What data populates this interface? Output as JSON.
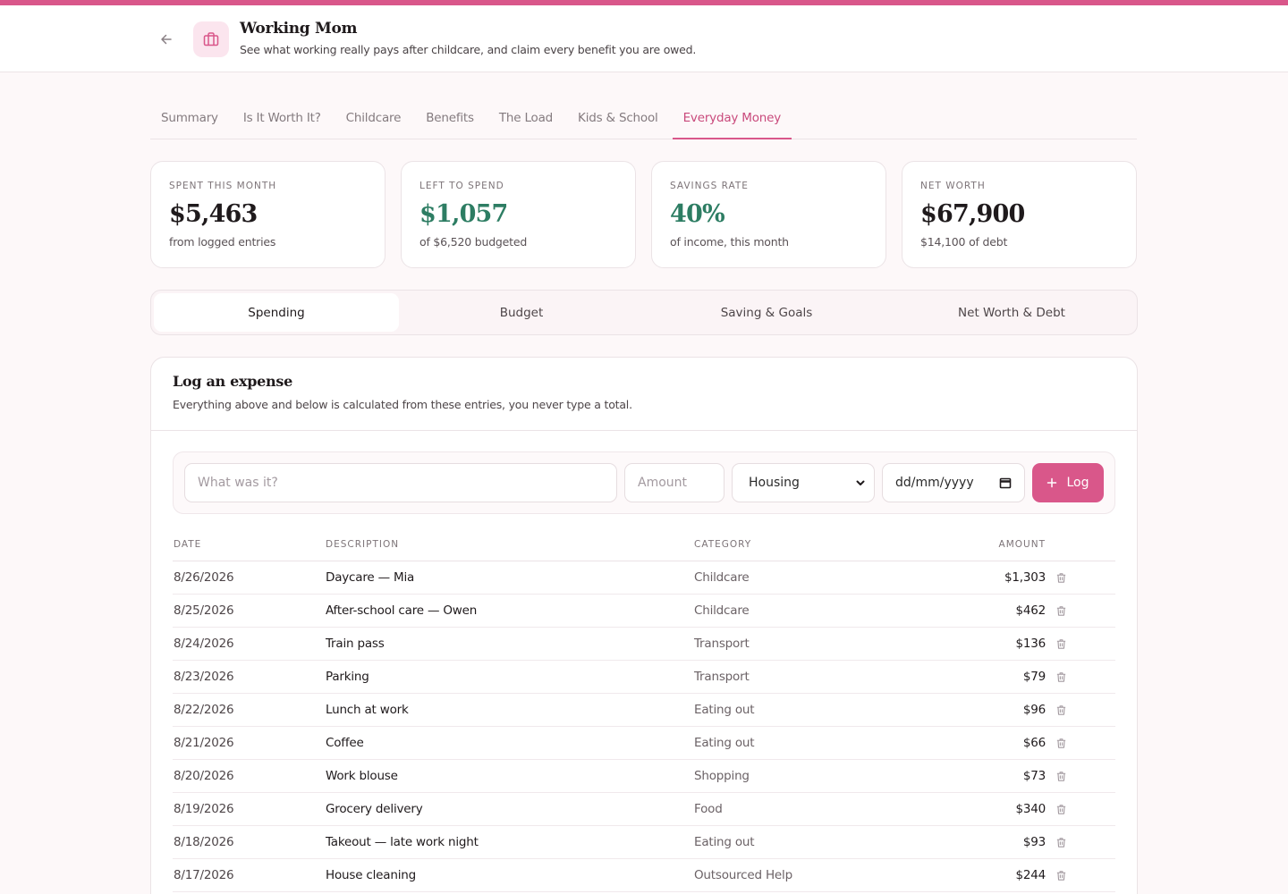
{
  "header": {
    "title": "Working Mom",
    "subtitle": "See what working really pays after childcare, and claim every benefit you are owed."
  },
  "tabs": [
    {
      "label": "Summary"
    },
    {
      "label": "Is It Worth It?"
    },
    {
      "label": "Childcare"
    },
    {
      "label": "Benefits"
    },
    {
      "label": "The Load"
    },
    {
      "label": "Kids & School"
    },
    {
      "label": "Everyday Money",
      "active": true
    }
  ],
  "stats": [
    {
      "label": "Spent this month",
      "value": "$5,463",
      "note": "from logged entries"
    },
    {
      "label": "Left to spend",
      "value": "$1,057",
      "note": "of $6,520 budgeted"
    },
    {
      "label": "Savings rate",
      "value": "40%",
      "note": "of income, this month"
    },
    {
      "label": "Net worth",
      "value": "$67,900",
      "note": "$14,100 of debt"
    }
  ],
  "segments": [
    {
      "label": "Spending",
      "active": true
    },
    {
      "label": "Budget"
    },
    {
      "label": "Saving & Goals"
    },
    {
      "label": "Net Worth & Debt"
    }
  ],
  "log": {
    "title": "Log an expense",
    "subtitle": "Everything above and below is calculated from these entries, you never type a total.",
    "description_placeholder": "What was it?",
    "amount_placeholder": "Amount",
    "category_value": "Housing",
    "date_placeholder": "dd/mm/yyyy",
    "button_label": "Log"
  },
  "table": {
    "headers": {
      "date": "Date",
      "description": "Description",
      "category": "Category",
      "amount": "Amount"
    },
    "rows": [
      {
        "date": "8/26/2026",
        "description": "Daycare — Mia",
        "category": "Childcare",
        "amount": "$1,303"
      },
      {
        "date": "8/25/2026",
        "description": "After-school care — Owen",
        "category": "Childcare",
        "amount": "$462"
      },
      {
        "date": "8/24/2026",
        "description": "Train pass",
        "category": "Transport",
        "amount": "$136"
      },
      {
        "date": "8/23/2026",
        "description": "Parking",
        "category": "Transport",
        "amount": "$79"
      },
      {
        "date": "8/22/2026",
        "description": "Lunch at work",
        "category": "Eating out",
        "amount": "$96"
      },
      {
        "date": "8/21/2026",
        "description": "Coffee",
        "category": "Eating out",
        "amount": "$66"
      },
      {
        "date": "8/20/2026",
        "description": "Work blouse",
        "category": "Shopping",
        "amount": "$73"
      },
      {
        "date": "8/19/2026",
        "description": "Grocery delivery",
        "category": "Food",
        "amount": "$340"
      },
      {
        "date": "8/18/2026",
        "description": "Takeout — late work night",
        "category": "Eating out",
        "amount": "$93"
      },
      {
        "date": "8/17/2026",
        "description": "House cleaning",
        "category": "Outsourced Help",
        "amount": "$244"
      }
    ]
  },
  "colors": {
    "accent": "#d9578a",
    "positive": "#2d7d63",
    "background": "#fdf8f9"
  }
}
